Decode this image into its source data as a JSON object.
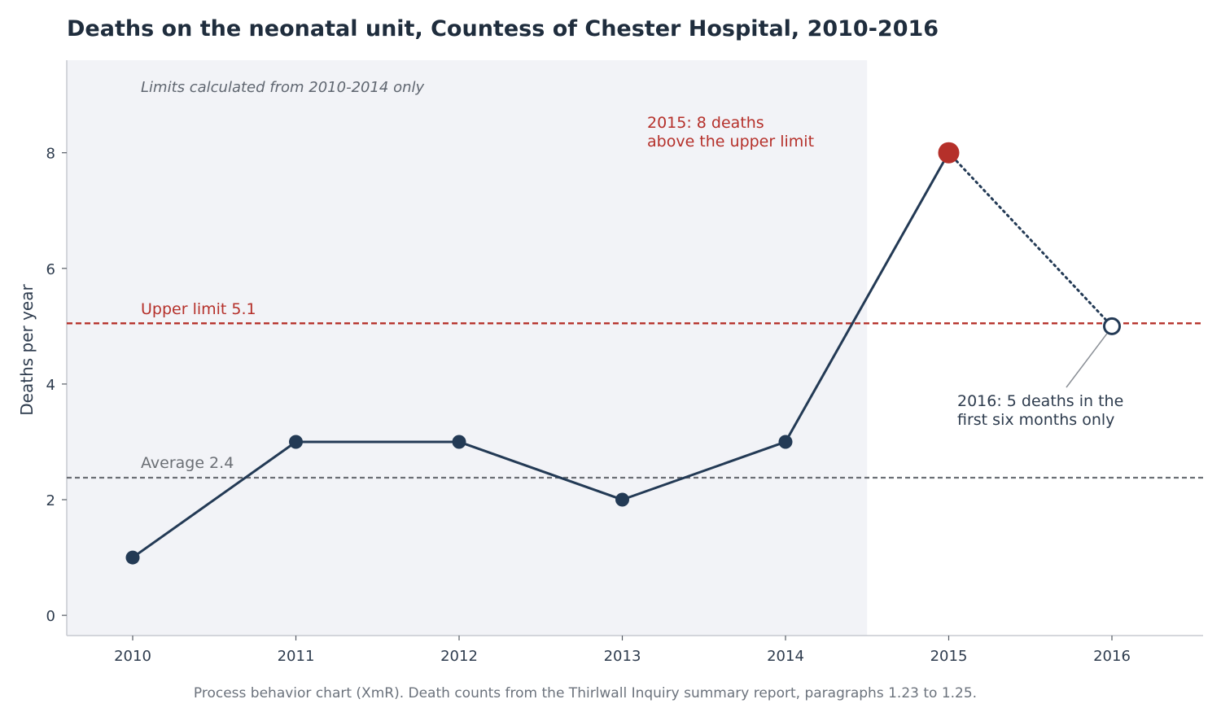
{
  "chart_data": {
    "type": "line",
    "title": "Deaths on the neonatal unit, Countess of Chester Hospital, 2010-2016",
    "ylabel": "Deaths per year",
    "xlabel": "",
    "x": [
      "2010",
      "2011",
      "2012",
      "2013",
      "2014",
      "2015",
      "2016"
    ],
    "values": [
      1,
      3,
      3,
      2,
      3,
      8,
      5
    ],
    "ylim": [
      -0.35,
      9.6
    ],
    "yticks": [
      "0",
      "2",
      "4",
      "6",
      "8"
    ],
    "grid": false,
    "baseline_note": "Limits calculated from 2010-2014 only",
    "upper_limit": {
      "value": 5.05,
      "label": "Upper limit 5.1",
      "color": "#b5302a"
    },
    "average": {
      "value": 2.38,
      "label": "Average 2.4",
      "color": "#6b6f75"
    },
    "annotations": {
      "peak_line1": "2015: 8 deaths",
      "peak_line2": "above the upper limit",
      "partial_line1": "2016: 5 deaths in the",
      "partial_line2": "first six months only"
    },
    "caption": "Process behavior chart (XmR). Death counts from the Thirlwall Inquiry summary report, paragraphs 1.23 to 1.25.",
    "colors": {
      "line": "#233a55",
      "highlight": "#b5302a",
      "baseline_shade": "#f2f3f7",
      "axis": "#c7cad1"
    }
  }
}
